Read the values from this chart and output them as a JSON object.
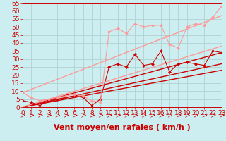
{
  "title": "",
  "xlabel": "Vent moyen/en rafales ( km/h )",
  "ylabel": "",
  "xlim": [
    0,
    23
  ],
  "ylim": [
    0,
    65
  ],
  "xticks": [
    0,
    1,
    2,
    3,
    4,
    5,
    6,
    7,
    8,
    9,
    10,
    11,
    12,
    13,
    14,
    15,
    16,
    17,
    18,
    19,
    20,
    21,
    22,
    23
  ],
  "yticks": [
    0,
    5,
    10,
    15,
    20,
    25,
    30,
    35,
    40,
    45,
    50,
    55,
    60,
    65
  ],
  "bg_color": "#cceef0",
  "grid_color": "#aacccc",
  "lines": [
    {
      "x": [
        0,
        23
      ],
      "y": [
        0,
        23
      ],
      "color": "#cc0000",
      "lw": 1.0,
      "marker": null,
      "linestyle": "-"
    },
    {
      "x": [
        0,
        23
      ],
      "y": [
        0,
        27
      ],
      "color": "#cc0000",
      "lw": 1.0,
      "marker": null,
      "linestyle": "-"
    },
    {
      "x": [
        0,
        23
      ],
      "y": [
        0,
        34
      ],
      "color": "#cc0000",
      "lw": 1.0,
      "marker": null,
      "linestyle": "-"
    },
    {
      "x": [
        0,
        23
      ],
      "y": [
        0,
        38
      ],
      "color": "#ff9999",
      "lw": 1.0,
      "marker": null,
      "linestyle": "-"
    },
    {
      "x": [
        0,
        1,
        2,
        3,
        4,
        5,
        6,
        7,
        8,
        9,
        10,
        11,
        12,
        13,
        14,
        15,
        16,
        17,
        18,
        19,
        20,
        21,
        22,
        23
      ],
      "y": [
        4,
        3,
        1,
        4,
        5,
        6,
        7,
        6,
        1,
        5,
        25,
        27,
        25,
        33,
        26,
        27,
        35,
        22,
        27,
        28,
        27,
        26,
        35,
        34
      ],
      "color": "#cc0000",
      "lw": 0.8,
      "marker": "D",
      "markersize": 2.0,
      "linestyle": "-"
    },
    {
      "x": [
        0,
        1,
        2,
        3,
        4,
        5,
        6,
        7,
        8,
        9,
        10,
        11,
        12,
        13,
        14,
        15,
        16,
        17,
        18,
        19,
        20,
        21,
        22,
        23
      ],
      "y": [
        9,
        6,
        4,
        5,
        6,
        7,
        8,
        7,
        4,
        3,
        47,
        49,
        46,
        52,
        50,
        51,
        51,
        39,
        37,
        50,
        52,
        51,
        56,
        63
      ],
      "color": "#ff9999",
      "lw": 0.8,
      "marker": "D",
      "markersize": 2.0,
      "linestyle": "-"
    },
    {
      "x": [
        0,
        23
      ],
      "y": [
        9,
        57
      ],
      "color": "#ff9999",
      "lw": 1.0,
      "marker": null,
      "linestyle": "-"
    }
  ],
  "xlabel_color": "#cc0000",
  "xlabel_fontsize": 8,
  "tick_color": "#cc0000",
  "tick_fontsize": 6.5
}
